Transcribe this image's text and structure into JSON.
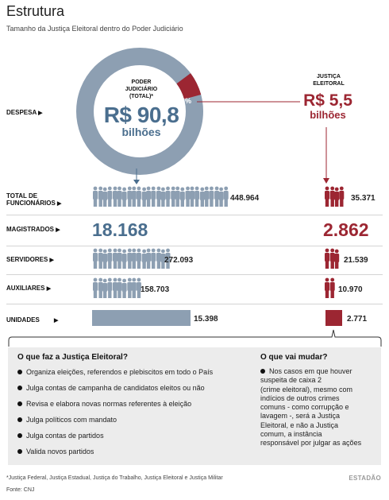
{
  "title": "Estrutura",
  "subtitle": "Tamanho da Justiça Eleitoral dentro do Poder Judiciário",
  "despesa": {
    "label": "DESPESA",
    "poder_label_1": "PODER",
    "poder_label_2": "JUDICIÁRIO",
    "poder_label_3": "(TOTAL)*",
    "poder_value": "R$ 90,8",
    "poder_unit": "bilhões",
    "share_label": "6%",
    "justica_label_1": "JUSTIÇA",
    "justica_label_2": "ELEITORAL",
    "justica_value": "R$ 5,5",
    "justica_unit": "bilhões"
  },
  "rows": [
    {
      "label_1": "TOTAL DE",
      "label_2": "FUNCIONÁRIOS",
      "judiciario": "448.964",
      "eleitoral": "35.371"
    },
    {
      "label_1": "MAGISTRADOS",
      "label_2": "",
      "judiciario": "18.168",
      "eleitoral": "2.862"
    },
    {
      "label_1": "SERVIDORES",
      "label_2": "",
      "judiciario": "272.093",
      "eleitoral": "21.539"
    },
    {
      "label_1": "AUXILIARES",
      "label_2": "",
      "judiciario": "158.703",
      "eleitoral": "10.970"
    },
    {
      "label_1": "UNIDADES",
      "label_2": "",
      "judiciario": "15.398",
      "eleitoral": "2.771"
    }
  ],
  "panel": {
    "left_title": "O que faz a Justiça Eleitoral?",
    "left_items": [
      "Organiza eleições, referendos e plebiscitos em todo o País",
      "Julga contas de campanha de candidatos eleitos ou não",
      "Revisa e elabora novas normas referentes à eleição",
      "Julga políticos com mandato",
      "Julga contas de partidos",
      "Valida novos partidos"
    ],
    "right_title": "O que vai mudar?",
    "right_lines": [
      "Nos casos em que houver",
      "suspeita de caixa 2",
      "(crime eleitoral), mesmo com",
      "indícios de outros crimes",
      "comuns - como corrupção e",
      "lavagem -, será a Justiça",
      "Eleitoral, e não a Justiça",
      "comum, a instância",
      "responsável por julgar as ações"
    ]
  },
  "footnote": "*Justiça Federal, Justiça Estadual, Justiça do Trabalho, Justiça Eleitoral e Justiça Militar",
  "source": "Fonte: CNJ",
  "logo": "ESTADÃO",
  "colors": {
    "judiciario": "#8d9fb2",
    "judiciario_text": "#4a6e8e",
    "eleitoral": "#9c2632"
  },
  "chart_data": {
    "type": "table",
    "categories": [
      "DESPESA",
      "TOTAL DE FUNCIONÁRIOS",
      "MAGISTRADOS",
      "SERVIDORES",
      "AUXILIARES",
      "UNIDADES"
    ],
    "series": [
      {
        "name": "PODER JUDICIÁRIO (TOTAL)*",
        "values": [
          90.8,
          448964,
          18168,
          272093,
          158703,
          15398
        ]
      },
      {
        "name": "JUSTIÇA ELEITORAL",
        "values": [
          5.5,
          35371,
          2862,
          21539,
          10970,
          2771
        ]
      }
    ],
    "donut": {
      "eleitoral_share": 0.06
    }
  }
}
